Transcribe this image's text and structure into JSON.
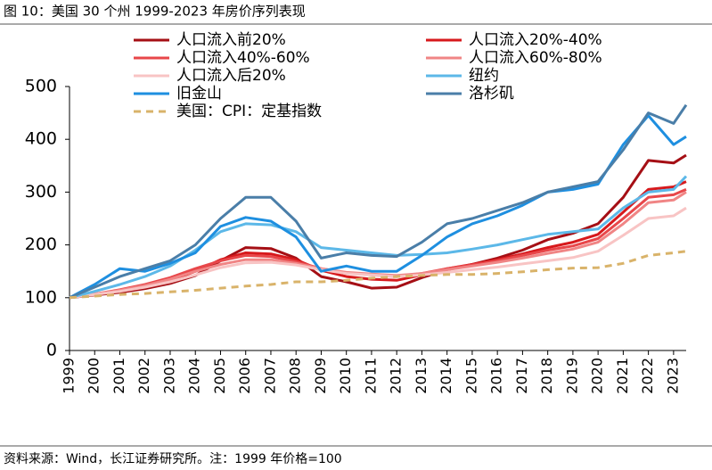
{
  "chart_data": {
    "type": "line",
    "title": "图 10：美国 30 个州 1999-2023 年房价序列表现",
    "source": "资料来源：Wind，长江证券研究所。注：1999 年价格=100",
    "x": [
      1999,
      2000,
      2001,
      2002,
      2003,
      2004,
      2005,
      2006,
      2007,
      2008,
      2009,
      2010,
      2011,
      2012,
      2013,
      2014,
      2015,
      2016,
      2017,
      2018,
      2019,
      2020,
      2021,
      2022,
      2023,
      2023.5
    ],
    "xlim": [
      1999,
      2023.5
    ],
    "xticks": [
      1999,
      2000,
      2001,
      2002,
      2003,
      2004,
      2005,
      2006,
      2007,
      2008,
      2009,
      2010,
      2011,
      2012,
      2013,
      2014,
      2015,
      2016,
      2017,
      2018,
      2019,
      2020,
      2021,
      2022,
      2023
    ],
    "ylim": [
      0,
      500
    ],
    "yticks": [
      0,
      100,
      200,
      300,
      400,
      500
    ],
    "grid": false,
    "series": [
      {
        "name": "人口流入前20%",
        "color": "#a50f15",
        "values": [
          100,
          105,
          110,
          117,
          127,
          142,
          170,
          195,
          193,
          175,
          140,
          130,
          118,
          120,
          138,
          153,
          163,
          175,
          190,
          210,
          222,
          240,
          290,
          360,
          355,
          370
        ]
      },
      {
        "name": "人口流入20%-40%",
        "color": "#d7191c",
        "values": [
          100,
          106,
          112,
          120,
          132,
          150,
          172,
          185,
          183,
          172,
          152,
          140,
          135,
          133,
          143,
          155,
          163,
          172,
          183,
          195,
          205,
          220,
          262,
          305,
          310,
          320
        ]
      },
      {
        "name": "人口流入40%-60%",
        "color": "#e8474a",
        "values": [
          100,
          107,
          115,
          125,
          138,
          155,
          170,
          180,
          178,
          168,
          155,
          147,
          143,
          140,
          146,
          155,
          162,
          170,
          180,
          190,
          198,
          212,
          250,
          290,
          295,
          305
        ]
      },
      {
        "name": "人口流入60%-80%",
        "color": "#f08585",
        "values": [
          100,
          107,
          114,
          123,
          135,
          150,
          163,
          172,
          172,
          165,
          155,
          148,
          145,
          142,
          146,
          153,
          160,
          167,
          175,
          184,
          192,
          205,
          240,
          280,
          285,
          300
        ]
      },
      {
        "name": "人口流入后20%",
        "color": "#f8c4c4",
        "values": [
          100,
          106,
          112,
          120,
          130,
          143,
          157,
          166,
          167,
          162,
          153,
          146,
          143,
          140,
          143,
          148,
          153,
          158,
          164,
          170,
          176,
          188,
          218,
          250,
          255,
          270
        ]
      },
      {
        "name": "纽约",
        "color": "#5cb8e8",
        "values": [
          100,
          112,
          125,
          140,
          160,
          190,
          225,
          240,
          238,
          225,
          195,
          190,
          185,
          180,
          182,
          185,
          192,
          200,
          210,
          220,
          225,
          230,
          270,
          300,
          305,
          330
        ]
      },
      {
        "name": "旧金山",
        "color": "#1e8fe0",
        "values": [
          100,
          125,
          155,
          150,
          165,
          185,
          235,
          252,
          245,
          215,
          150,
          160,
          150,
          150,
          180,
          215,
          240,
          255,
          275,
          300,
          305,
          315,
          390,
          445,
          390,
          405
        ]
      },
      {
        "name": "洛杉矶",
        "color": "#4a7ea8",
        "values": [
          100,
          120,
          140,
          155,
          170,
          200,
          250,
          290,
          290,
          245,
          175,
          185,
          180,
          178,
          205,
          240,
          250,
          265,
          280,
          300,
          310,
          320,
          380,
          450,
          430,
          465
        ]
      },
      {
        "name": "美国：CPI：定基指数",
        "color": "#d9b36a",
        "line_style": "dashed",
        "values": [
          100,
          103,
          106,
          108,
          111,
          114,
          118,
          122,
          125,
          130,
          130,
          133,
          137,
          140,
          142,
          144,
          144,
          146,
          149,
          153,
          156,
          157,
          165,
          180,
          185,
          188
        ]
      }
    ]
  }
}
